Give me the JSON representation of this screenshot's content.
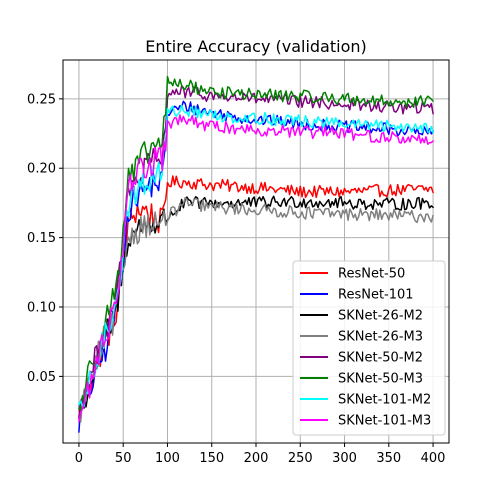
{
  "chart_data": {
    "type": "line",
    "title": "Entire Accuracy (validation)",
    "xlabel": "",
    "ylabel": "",
    "xlim": [
      -18,
      418
    ],
    "ylim": [
      0.002,
      0.278
    ],
    "xticks": [
      0,
      50,
      100,
      150,
      200,
      250,
      300,
      350,
      400
    ],
    "yticks": [
      0.05,
      0.1,
      0.15,
      0.2,
      0.25
    ],
    "ytick_labels": [
      "0.05",
      "0.10",
      "0.15",
      "0.20",
      "0.25"
    ],
    "grid": true,
    "legend_position": "lower-right",
    "x_range": [
      0,
      400
    ],
    "series": [
      {
        "name": "ResNet-50",
        "color": "#ff0000",
        "points": [
          [
            0,
            0.022
          ],
          [
            10,
            0.04
          ],
          [
            20,
            0.06
          ],
          [
            30,
            0.075
          ],
          [
            40,
            0.09
          ],
          [
            48,
            0.12
          ],
          [
            55,
            0.16
          ],
          [
            65,
            0.17
          ],
          [
            75,
            0.17
          ],
          [
            85,
            0.165
          ],
          [
            95,
            0.16
          ],
          [
            100,
            0.19
          ],
          [
            120,
            0.19
          ],
          [
            150,
            0.188
          ],
          [
            200,
            0.186
          ],
          [
            250,
            0.183
          ],
          [
            300,
            0.183
          ],
          [
            350,
            0.184
          ],
          [
            400,
            0.185
          ]
        ]
      },
      {
        "name": "ResNet-101",
        "color": "#0000ff",
        "points": [
          [
            0,
            0.018
          ],
          [
            10,
            0.035
          ],
          [
            20,
            0.055
          ],
          [
            30,
            0.07
          ],
          [
            40,
            0.09
          ],
          [
            48,
            0.12
          ],
          [
            55,
            0.17
          ],
          [
            65,
            0.18
          ],
          [
            75,
            0.185
          ],
          [
            85,
            0.19
          ],
          [
            95,
            0.19
          ],
          [
            100,
            0.24
          ],
          [
            120,
            0.245
          ],
          [
            150,
            0.24
          ],
          [
            200,
            0.235
          ],
          [
            250,
            0.232
          ],
          [
            300,
            0.23
          ],
          [
            350,
            0.228
          ],
          [
            400,
            0.225
          ]
        ]
      },
      {
        "name": "SKNet-26-M2",
        "color": "#000000",
        "points": [
          [
            0,
            0.022
          ],
          [
            10,
            0.04
          ],
          [
            20,
            0.06
          ],
          [
            30,
            0.08
          ],
          [
            40,
            0.09
          ],
          [
            48,
            0.12
          ],
          [
            55,
            0.15
          ],
          [
            65,
            0.155
          ],
          [
            75,
            0.16
          ],
          [
            85,
            0.16
          ],
          [
            95,
            0.162
          ],
          [
            100,
            0.165
          ],
          [
            120,
            0.175
          ],
          [
            150,
            0.175
          ],
          [
            200,
            0.175
          ],
          [
            250,
            0.176
          ],
          [
            300,
            0.175
          ],
          [
            350,
            0.174
          ],
          [
            400,
            0.175
          ]
        ]
      },
      {
        "name": "SKNet-26-M3",
        "color": "#808080",
        "points": [
          [
            0,
            0.022
          ],
          [
            10,
            0.042
          ],
          [
            20,
            0.062
          ],
          [
            30,
            0.08
          ],
          [
            40,
            0.09
          ],
          [
            48,
            0.12
          ],
          [
            55,
            0.15
          ],
          [
            65,
            0.155
          ],
          [
            75,
            0.16
          ],
          [
            85,
            0.16
          ],
          [
            95,
            0.16
          ],
          [
            100,
            0.165
          ],
          [
            120,
            0.175
          ],
          [
            150,
            0.172
          ],
          [
            200,
            0.17
          ],
          [
            250,
            0.168
          ],
          [
            300,
            0.167
          ],
          [
            350,
            0.166
          ],
          [
            400,
            0.165
          ]
        ]
      },
      {
        "name": "SKNet-50-M2",
        "color": "#800080",
        "points": [
          [
            0,
            0.025
          ],
          [
            10,
            0.045
          ],
          [
            20,
            0.065
          ],
          [
            30,
            0.085
          ],
          [
            40,
            0.1
          ],
          [
            48,
            0.13
          ],
          [
            55,
            0.18
          ],
          [
            65,
            0.19
          ],
          [
            75,
            0.2
          ],
          [
            85,
            0.205
          ],
          [
            95,
            0.205
          ],
          [
            100,
            0.255
          ],
          [
            120,
            0.255
          ],
          [
            150,
            0.252
          ],
          [
            200,
            0.25
          ],
          [
            250,
            0.248
          ],
          [
            300,
            0.246
          ],
          [
            350,
            0.244
          ],
          [
            400,
            0.243
          ]
        ]
      },
      {
        "name": "SKNet-50-M3",
        "color": "#008000",
        "points": [
          [
            0,
            0.025
          ],
          [
            10,
            0.05
          ],
          [
            20,
            0.07
          ],
          [
            30,
            0.09
          ],
          [
            40,
            0.11
          ],
          [
            48,
            0.14
          ],
          [
            55,
            0.19
          ],
          [
            65,
            0.2
          ],
          [
            75,
            0.21
          ],
          [
            85,
            0.215
          ],
          [
            95,
            0.22
          ],
          [
            100,
            0.262
          ],
          [
            120,
            0.26
          ],
          [
            150,
            0.255
          ],
          [
            200,
            0.253
          ],
          [
            250,
            0.252
          ],
          [
            300,
            0.25
          ],
          [
            350,
            0.248
          ],
          [
            400,
            0.248
          ]
        ]
      },
      {
        "name": "SKNet-101-M2",
        "color": "#00ffff",
        "points": [
          [
            0,
            0.02
          ],
          [
            10,
            0.04
          ],
          [
            20,
            0.06
          ],
          [
            30,
            0.08
          ],
          [
            40,
            0.1
          ],
          [
            48,
            0.13
          ],
          [
            55,
            0.17
          ],
          [
            65,
            0.185
          ],
          [
            75,
            0.19
          ],
          [
            85,
            0.195
          ],
          [
            95,
            0.2
          ],
          [
            100,
            0.24
          ],
          [
            120,
            0.242
          ],
          [
            150,
            0.238
          ],
          [
            200,
            0.236
          ],
          [
            250,
            0.234
          ],
          [
            300,
            0.232
          ],
          [
            350,
            0.23
          ],
          [
            400,
            0.23
          ]
        ]
      },
      {
        "name": "SKNet-101-M3",
        "color": "#ff00ff",
        "points": [
          [
            0,
            0.02
          ],
          [
            10,
            0.038
          ],
          [
            20,
            0.06
          ],
          [
            30,
            0.08
          ],
          [
            40,
            0.1
          ],
          [
            48,
            0.13
          ],
          [
            55,
            0.19
          ],
          [
            65,
            0.195
          ],
          [
            75,
            0.2
          ],
          [
            85,
            0.205
          ],
          [
            95,
            0.205
          ],
          [
            100,
            0.232
          ],
          [
            120,
            0.235
          ],
          [
            150,
            0.23
          ],
          [
            200,
            0.228
          ],
          [
            250,
            0.226
          ],
          [
            300,
            0.225
          ],
          [
            350,
            0.222
          ],
          [
            400,
            0.22
          ]
        ]
      }
    ]
  }
}
